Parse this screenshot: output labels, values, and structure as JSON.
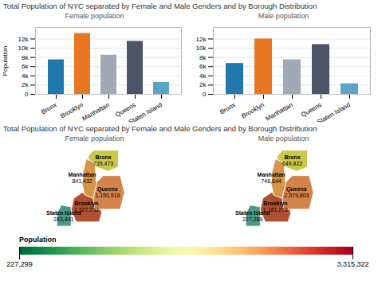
{
  "chart_data": [
    {
      "type": "bar",
      "title": "Total Population of NYC separated by Female and Male Genders and by Borough Distribution",
      "subtitle": "Female population",
      "categories": [
        "Bronx",
        "Brooklyn",
        "Manhattan",
        "Queens",
        "Staten Island"
      ],
      "values": [
        7500,
        13200,
        8500,
        11500,
        2600
      ],
      "colors": [
        "#2178ae",
        "#e87722",
        "#a0aab7",
        "#4a5568",
        "#5ba3c9"
      ],
      "ylabel": "Population",
      "ylim": [
        0,
        14500
      ],
      "yticks": [
        0,
        {
          "value": 2000,
          "label": "2k"
        },
        {
          "value": 4000,
          "label": "4k"
        },
        {
          "value": 6000,
          "label": "6k"
        },
        {
          "value": 8000,
          "label": "8k"
        },
        {
          "value": 10000,
          "label": "10k"
        },
        {
          "value": 12000,
          "label": "12k"
        }
      ],
      "grid": true
    },
    {
      "type": "bar",
      "subtitle": "Male population",
      "categories": [
        "Bronx",
        "Brooklyn",
        "Manhattan",
        "Queens",
        "Staten Island"
      ],
      "values": [
        6700,
        12000,
        7500,
        10800,
        2300
      ],
      "colors": [
        "#2178ae",
        "#e87722",
        "#a0aab7",
        "#4a5568",
        "#5ba3c9"
      ],
      "ylim": [
        0,
        14500
      ],
      "yticks": [
        0,
        {
          "value": 2000,
          "label": "2k"
        },
        {
          "value": 4000,
          "label": "4k"
        },
        {
          "value": 6000,
          "label": "6k"
        },
        {
          "value": 8000,
          "label": "8k"
        },
        {
          "value": 10000,
          "label": "10k"
        },
        {
          "value": 12000,
          "label": "12k"
        }
      ],
      "grid": true
    },
    {
      "type": "map",
      "title": "Total Population of NYC separated by Female and Male Genders and by Borough Distribution",
      "subtitle": "Female population",
      "categories": [
        "Bronx",
        "Brooklyn",
        "Manhattan",
        "Queens",
        "Staten Island"
      ],
      "values": [
        735473,
        1327232,
        841432,
        1150919,
        243441
      ],
      "value_labels": [
        "735,473",
        "1,327,232",
        "841,432",
        "1,150,919",
        "243,441"
      ],
      "colors": [
        "#c8c84a",
        "#b05030",
        "#d4944a",
        "#d4844a",
        "#4a9a8a"
      ]
    },
    {
      "type": "map",
      "subtitle": "Male population",
      "categories": [
        "Bronx",
        "Brooklyn",
        "Manhattan",
        "Queens",
        "Staten Island"
      ],
      "values": [
        649822,
        1181278,
        746644,
        2079803,
        227289
      ],
      "value_labels": [
        "649,822",
        "1,181,278",
        "746,644",
        "2,079,803",
        "227,289"
      ],
      "colors": [
        "#c8c84a",
        "#b05030",
        "#d4944a",
        "#d4844a",
        "#4a9a8a"
      ]
    },
    {
      "type": "colorbar",
      "title": "Population",
      "xlim": [
        227299,
        3315322
      ],
      "xticks": [
        {
          "value": 227299,
          "label": "227,299"
        },
        {
          "value": 3315322,
          "label": "3,315,322"
        }
      ]
    }
  ]
}
